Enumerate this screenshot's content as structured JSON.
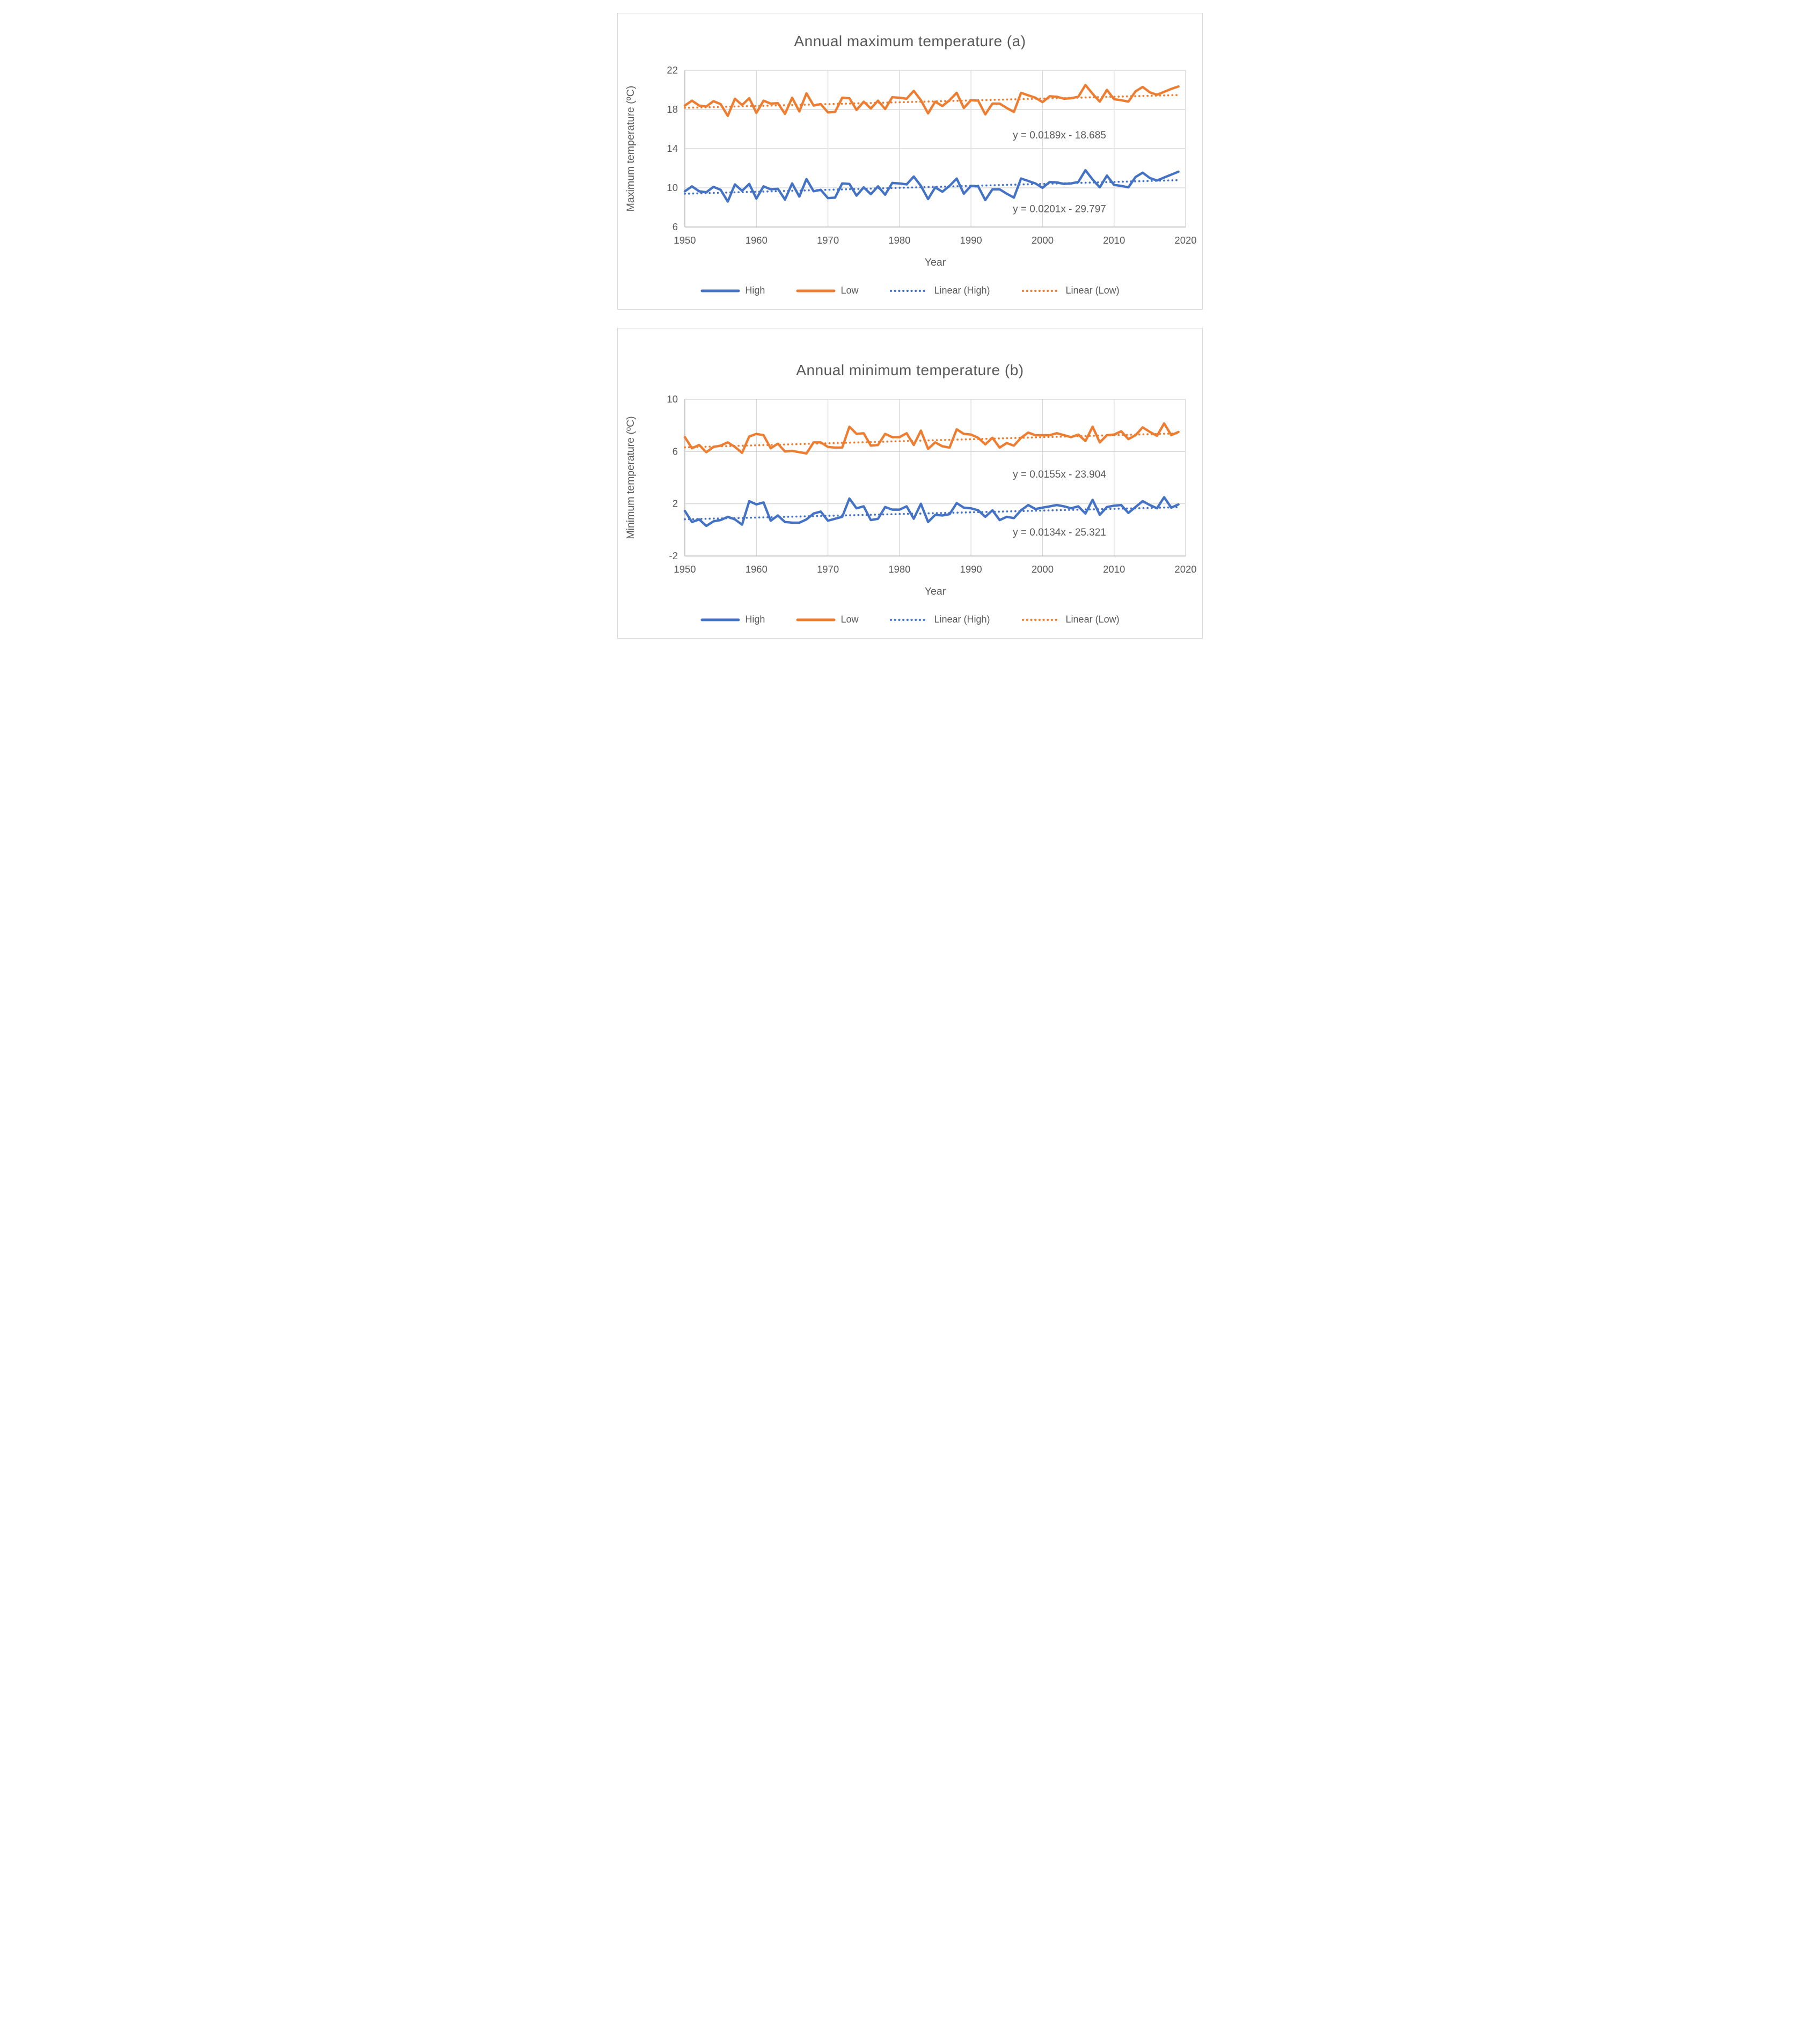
{
  "colors": {
    "high": "#4472C4",
    "low": "#ED7D31",
    "gridline": "#D9D9D9",
    "axis_line": "#BFBFBF",
    "text": "#595959"
  },
  "years": [
    1950,
    1951,
    1952,
    1953,
    1954,
    1955,
    1956,
    1957,
    1958,
    1959,
    1960,
    1961,
    1962,
    1963,
    1964,
    1965,
    1966,
    1967,
    1968,
    1969,
    1970,
    1971,
    1972,
    1973,
    1974,
    1975,
    1976,
    1977,
    1978,
    1979,
    1980,
    1981,
    1982,
    1983,
    1984,
    1985,
    1986,
    1987,
    1988,
    1989,
    1990,
    1991,
    1992,
    1993,
    1994,
    1995,
    1996,
    1997,
    1998,
    1999,
    2000,
    2001,
    2002,
    2003,
    2004,
    2005,
    2006,
    2007,
    2008,
    2009,
    2010,
    2011,
    2012,
    2013,
    2014,
    2015,
    2016,
    2017,
    2018,
    2019
  ],
  "chart_data": [
    {
      "type": "line",
      "title": "Annual maximum temperature (a)",
      "xlabel": "Year",
      "ylabel": "Maximum temperature (ºC)",
      "xlim": [
        1950,
        2020
      ],
      "ylim": [
        6,
        22
      ],
      "xticks": [
        1950,
        1960,
        1970,
        1980,
        1990,
        2000,
        2010,
        2020
      ],
      "yticks": [
        6,
        10,
        14,
        18,
        22
      ],
      "grid": true,
      "legend_position": "bottom",
      "series": [
        {
          "name": "High",
          "color": "#4472C4",
          "style": "solid",
          "values": [
            9.65,
            10.15,
            9.65,
            9.55,
            10.1,
            9.8,
            8.6,
            10.35,
            9.7,
            10.4,
            8.9,
            10.15,
            9.85,
            9.9,
            8.8,
            10.45,
            9.1,
            10.9,
            9.65,
            9.8,
            8.95,
            9.0,
            10.45,
            10.4,
            9.2,
            10.05,
            9.35,
            10.15,
            9.3,
            10.5,
            10.45,
            10.35,
            11.15,
            10.2,
            8.85,
            10.05,
            9.6,
            10.2,
            10.95,
            9.4,
            10.2,
            10.15,
            8.75,
            9.85,
            9.85,
            9.4,
            9.0,
            10.95,
            10.7,
            10.45,
            10.0,
            10.6,
            10.55,
            10.4,
            10.45,
            10.6,
            11.8,
            10.85,
            10.05,
            11.25,
            10.3,
            10.2,
            10.05,
            11.1,
            11.55,
            11.0,
            10.75,
            11.05,
            11.35,
            11.65
          ]
        },
        {
          "name": "Low",
          "color": "#ED7D31",
          "style": "solid",
          "values": [
            18.4,
            18.9,
            18.4,
            18.3,
            18.85,
            18.55,
            17.35,
            19.1,
            18.45,
            19.15,
            17.65,
            18.9,
            18.6,
            18.65,
            17.55,
            19.2,
            17.8,
            19.65,
            18.4,
            18.55,
            17.7,
            17.75,
            19.2,
            19.15,
            17.95,
            18.8,
            18.1,
            18.9,
            18.05,
            19.25,
            19.2,
            19.1,
            19.9,
            18.95,
            17.6,
            18.8,
            18.35,
            18.95,
            19.7,
            18.15,
            18.95,
            18.9,
            17.5,
            18.6,
            18.6,
            18.15,
            17.75,
            19.7,
            19.45,
            19.2,
            18.75,
            19.35,
            19.3,
            19.1,
            19.15,
            19.3,
            20.5,
            19.6,
            18.8,
            20.0,
            19.05,
            18.95,
            18.8,
            19.85,
            20.3,
            19.75,
            19.5,
            19.8,
            20.1,
            20.35
          ]
        },
        {
          "name": "Linear (High)",
          "color": "#4472C4",
          "style": "dotted",
          "trend": {
            "slope": 0.0201,
            "intercept": -29.797
          },
          "equation": "y = 0.0201x - 29.797",
          "equation_pos": [
            0.655,
            0.885
          ]
        },
        {
          "name": "Linear (Low)",
          "color": "#ED7D31",
          "style": "dotted",
          "trend": {
            "slope": 0.0189,
            "intercept": -18.685
          },
          "equation": "y = 0.0189x - 18.685",
          "equation_pos": [
            0.655,
            0.415
          ]
        }
      ]
    },
    {
      "type": "line",
      "title": "Annual minimum temperature (b)",
      "xlabel": "Year",
      "ylabel": "Minimum temperature (ºC)",
      "xlim": [
        1950,
        2020
      ],
      "ylim": [
        -2,
        10
      ],
      "xticks": [
        1950,
        1960,
        1970,
        1980,
        1990,
        2000,
        2010,
        2020
      ],
      "yticks": [
        -2,
        2,
        6,
        10
      ],
      "grid": true,
      "legend_position": "bottom",
      "series": [
        {
          "name": "High",
          "color": "#4472C4",
          "style": "solid",
          "values": [
            1.45,
            0.6,
            0.8,
            0.3,
            0.65,
            0.75,
            1.0,
            0.8,
            0.4,
            2.2,
            1.95,
            2.1,
            0.7,
            1.1,
            0.6,
            0.55,
            0.55,
            0.8,
            1.25,
            1.4,
            0.7,
            0.85,
            1.0,
            2.4,
            1.65,
            1.8,
            0.75,
            0.85,
            1.75,
            1.55,
            1.55,
            1.8,
            0.85,
            2.0,
            0.6,
            1.15,
            1.1,
            1.2,
            2.05,
            1.7,
            1.65,
            1.5,
            1.0,
            1.5,
            0.75,
            1.0,
            0.9,
            1.5,
            1.9,
            1.6,
            1.7,
            1.8,
            1.9,
            1.8,
            1.65,
            1.8,
            1.25,
            2.3,
            1.15,
            1.75,
            1.85,
            1.9,
            1.3,
            1.75,
            2.2,
            1.9,
            1.65,
            2.5,
            1.7,
            1.95
          ]
        },
        {
          "name": "Low",
          "color": "#ED7D31",
          "style": "solid",
          "values": [
            7.1,
            6.25,
            6.5,
            5.95,
            6.35,
            6.45,
            6.7,
            6.35,
            5.9,
            7.15,
            7.35,
            7.25,
            6.25,
            6.6,
            6.0,
            6.05,
            5.95,
            5.85,
            6.7,
            6.7,
            6.35,
            6.3,
            6.3,
            7.9,
            7.35,
            7.4,
            6.45,
            6.5,
            7.35,
            7.1,
            7.1,
            7.4,
            6.5,
            7.6,
            6.2,
            6.7,
            6.4,
            6.3,
            7.7,
            7.35,
            7.3,
            7.05,
            6.55,
            7.05,
            6.3,
            6.65,
            6.45,
            7.05,
            7.45,
            7.25,
            7.25,
            7.25,
            7.4,
            7.25,
            7.1,
            7.3,
            6.8,
            7.9,
            6.7,
            7.25,
            7.3,
            7.55,
            6.95,
            7.25,
            7.85,
            7.5,
            7.2,
            8.15,
            7.25,
            7.5
          ]
        },
        {
          "name": "Linear (High)",
          "color": "#4472C4",
          "style": "dotted",
          "trend": {
            "slope": 0.0134,
            "intercept": -25.321
          },
          "equation": "y = 0.0134x - 25.321",
          "equation_pos": [
            0.655,
            0.85
          ]
        },
        {
          "name": "Linear (Low)",
          "color": "#ED7D31",
          "style": "dotted",
          "trend": {
            "slope": 0.0155,
            "intercept": -23.904
          },
          "equation": "y = 0.0155x - 23.904",
          "equation_pos": [
            0.655,
            0.48
          ]
        }
      ]
    }
  ]
}
